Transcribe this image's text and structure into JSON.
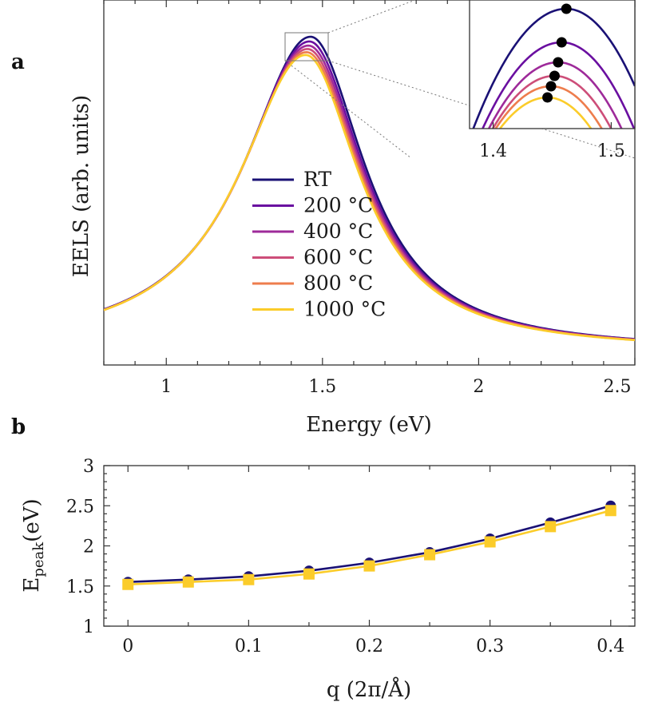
{
  "panels": {
    "a": "a",
    "b": "b"
  },
  "chart_data": [
    {
      "type": "line",
      "panel": "a",
      "xlabel": "Energy (eV)",
      "ylabel": "EELS (arb. units)",
      "xlim": [
        0.8,
        2.5
      ],
      "xticks": [
        "1",
        "1.5",
        "2",
        "2.5"
      ],
      "yticks": [],
      "legend_position": "center",
      "series": [
        {
          "name": "RT",
          "peak_x": 1.462,
          "peak_y": 1.0,
          "color": "#1a1175"
        },
        {
          "name": "200 °C",
          "peak_x": 1.458,
          "peak_y": 0.985,
          "color": "#6a0fa0"
        },
        {
          "name": "400 °C",
          "peak_x": 1.455,
          "peak_y": 0.972,
          "color": "#9e2a9a"
        },
        {
          "name": "600 °C",
          "peak_x": 1.452,
          "peak_y": 0.961,
          "color": "#cd4e79"
        },
        {
          "name": "800 °C",
          "peak_x": 1.449,
          "peak_y": 0.951,
          "color": "#ee7d4d"
        },
        {
          "name": "1000 °C",
          "peak_x": 1.446,
          "peak_y": 0.942,
          "color": "#fbcc2a"
        }
      ],
      "inset": {
        "xlim": [
          1.38,
          1.52
        ],
        "xticks": [
          "1.4",
          "1.5"
        ],
        "markers": "peak positions"
      }
    },
    {
      "type": "line",
      "panel": "b",
      "xlabel": "q (2π/Å)",
      "ylabel": "E_peak(eV)",
      "ylabel_main": "E",
      "ylabel_sub": "peak",
      "ylabel_rest": "(eV)",
      "xlim": [
        -0.02,
        0.42
      ],
      "ylim": [
        1,
        3
      ],
      "xticks": [
        "0",
        "0.1",
        "0.2",
        "0.3",
        "0.4"
      ],
      "yticks": [
        "1",
        "1.5",
        "2",
        "2.5",
        "3"
      ],
      "x": [
        0,
        0.05,
        0.1,
        0.15,
        0.2,
        0.25,
        0.3,
        0.35,
        0.4
      ],
      "series": [
        {
          "name": "RT",
          "marker": "circle",
          "color": "#1a1175",
          "values": [
            1.55,
            1.58,
            1.62,
            1.69,
            1.79,
            1.92,
            2.09,
            2.29,
            2.5
          ]
        },
        {
          "name": "1000 °C",
          "marker": "square",
          "color": "#fbcc2a",
          "values": [
            1.52,
            1.55,
            1.58,
            1.65,
            1.75,
            1.89,
            2.05,
            2.24,
            2.44
          ]
        }
      ]
    }
  ]
}
